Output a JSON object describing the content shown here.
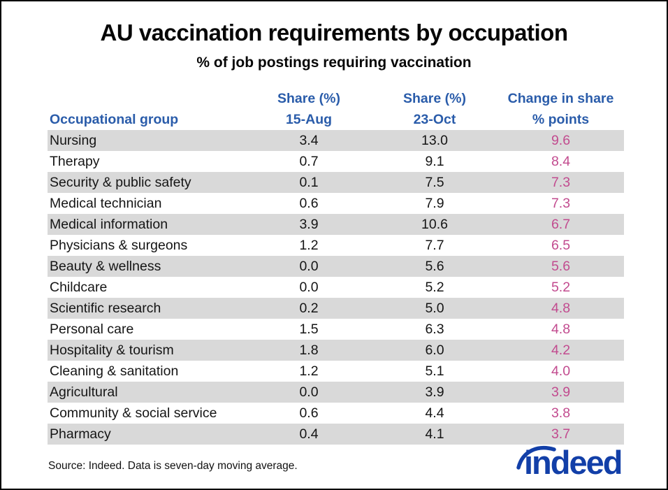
{
  "title": "AU vaccination requirements by occupation",
  "subtitle": "% of job postings requiring vaccination",
  "table": {
    "headers": {
      "group": "Occupational group",
      "aug": {
        "line1": "Share (%)",
        "line2": "15-Aug"
      },
      "oct": {
        "line1": "Share (%)",
        "line2": "23-Oct"
      },
      "change": {
        "line1": "Change in share",
        "line2": "% points"
      }
    }
  },
  "chart_data": {
    "type": "table",
    "title": "AU vaccination requirements by occupation",
    "subtitle": "% of job postings requiring vaccination",
    "columns": [
      "Occupational group",
      "Share (%) 15-Aug",
      "Share (%) 23-Oct",
      "Change in share % points"
    ],
    "rows": [
      [
        "Nursing",
        3.4,
        13.0,
        9.6
      ],
      [
        "Therapy",
        0.7,
        9.1,
        8.4
      ],
      [
        "Security & public safety",
        0.1,
        7.5,
        7.3
      ],
      [
        "Medical technician",
        0.6,
        7.9,
        7.3
      ],
      [
        "Medical information",
        3.9,
        10.6,
        6.7
      ],
      [
        "Physicians & surgeons",
        1.2,
        7.7,
        6.5
      ],
      [
        "Beauty & wellness",
        0.0,
        5.6,
        5.6
      ],
      [
        "Childcare",
        0.0,
        5.2,
        5.2
      ],
      [
        "Scientific research",
        0.2,
        5.0,
        4.8
      ],
      [
        "Personal care",
        1.5,
        6.3,
        4.8
      ],
      [
        "Hospitality & tourism",
        1.8,
        6.0,
        4.2
      ],
      [
        "Cleaning & sanitation",
        1.2,
        5.1,
        4.0
      ],
      [
        "Agricultural",
        0.0,
        3.9,
        3.9
      ],
      [
        "Community & social service",
        0.6,
        4.4,
        3.8
      ],
      [
        "Pharmacy",
        0.4,
        4.1,
        3.7
      ]
    ],
    "row_stripe": "odd-rows-gray",
    "value_decimals": 1
  },
  "footer": {
    "source": "Source: Indeed. Data is seven-day moving average.",
    "logo_text": "indeed"
  },
  "colors": {
    "header_blue": "#2a5caa",
    "change_pink": "#c24b8f",
    "row_stripe_gray": "#d9d9d9",
    "logo_blue": "#123fa8",
    "text_black": "#151515"
  }
}
